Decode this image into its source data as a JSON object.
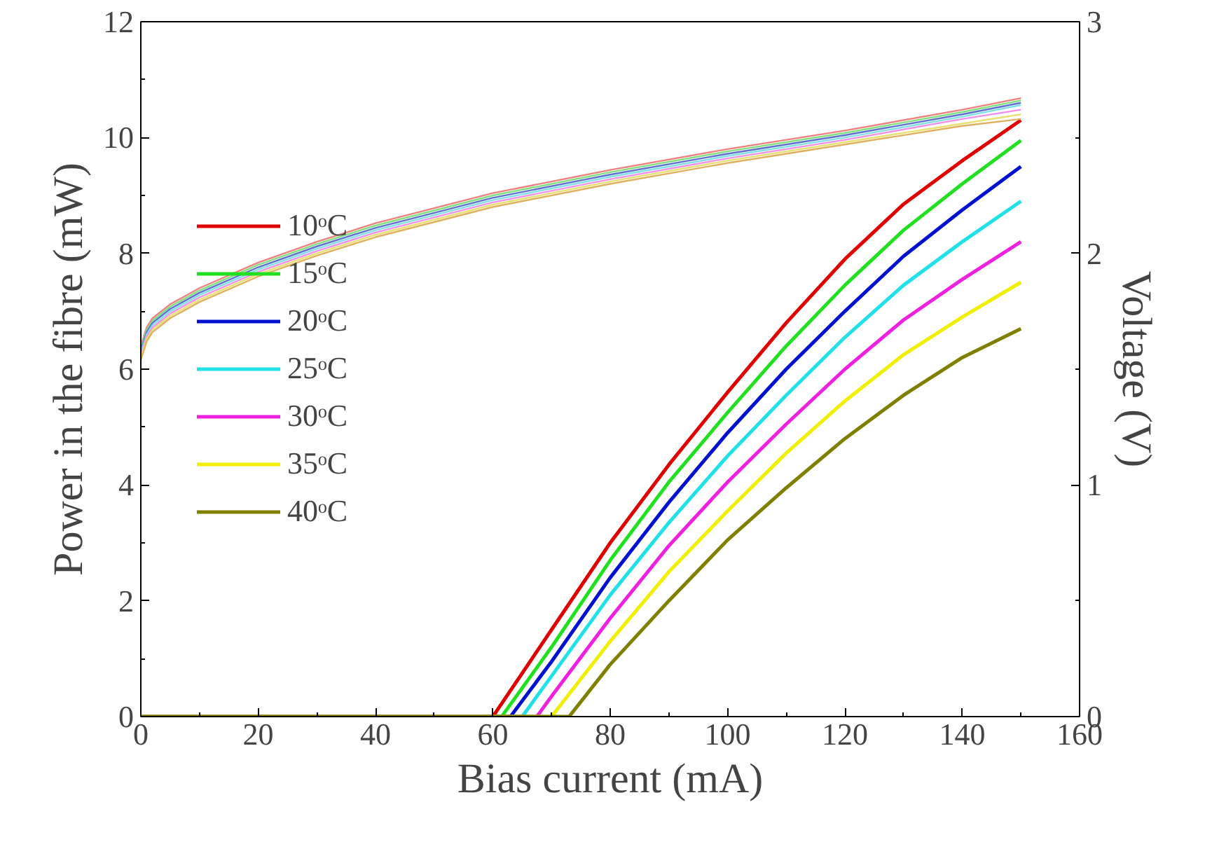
{
  "chart_data": {
    "type": "line",
    "xlabel": "Bias current (mA)",
    "ylabel": "Power in the fibre (mW)",
    "y2label": "Voltage (V)",
    "xlim": [
      0,
      160
    ],
    "ylim": [
      0,
      12
    ],
    "y2lim": [
      0,
      3
    ],
    "xticks": [
      0,
      {
        "value": 10,
        "label": null
      },
      20,
      {
        "value": 30,
        "label": null
      },
      40,
      {
        "value": 50,
        "label": null
      },
      60,
      {
        "value": 70,
        "label": null
      },
      80,
      {
        "value": 90,
        "label": null
      },
      100,
      {
        "value": 110,
        "label": null
      },
      120,
      {
        "value": 130,
        "label": null
      },
      140,
      {
        "value": 150,
        "label": null
      },
      160
    ],
    "yticks": [
      0,
      {
        "value": 1,
        "label": null
      },
      2,
      {
        "value": 3,
        "label": null
      },
      4,
      {
        "value": 5,
        "label": null
      },
      6,
      {
        "value": 7,
        "label": null
      },
      8,
      {
        "value": 9,
        "label": null
      },
      10,
      {
        "value": 11,
        "label": null
      },
      12
    ],
    "y2ticks": [
      0,
      {
        "value": 0.5,
        "label": null
      },
      1,
      {
        "value": 1.5,
        "label": null
      },
      2,
      {
        "value": 2.5,
        "label": null
      },
      3
    ],
    "grid": false,
    "legend": "left",
    "line_style": "solid",
    "marker": "none",
    "series": [
      {
        "name": "10ᵒC",
        "color": "#e00000",
        "x": [
          0,
          40,
          60,
          70,
          80,
          90,
          100,
          110,
          120,
          130,
          140,
          150
        ],
        "values": [
          0,
          0,
          0,
          1.5,
          3.0,
          4.35,
          5.6,
          6.8,
          7.9,
          8.85,
          9.6,
          10.3
        ]
      },
      {
        "name": "15ᵒC",
        "color": "#20e020",
        "x": [
          0,
          40,
          61.5,
          70,
          80,
          90,
          100,
          110,
          120,
          130,
          140,
          150
        ],
        "values": [
          0,
          0,
          0,
          1.2,
          2.7,
          4.05,
          5.25,
          6.4,
          7.45,
          8.4,
          9.2,
          9.95
        ]
      },
      {
        "name": "20ᵒC",
        "color": "#0010d0",
        "x": [
          0,
          40,
          63,
          70,
          80,
          90,
          100,
          110,
          120,
          130,
          140,
          150
        ],
        "values": [
          0,
          0,
          0,
          0.95,
          2.4,
          3.7,
          4.9,
          6.0,
          7.0,
          7.95,
          8.75,
          9.5
        ]
      },
      {
        "name": "25ᵒC",
        "color": "#20e0e8",
        "x": [
          0,
          40,
          65,
          70,
          80,
          90,
          100,
          110,
          120,
          130,
          140,
          150
        ],
        "values": [
          0,
          0,
          0,
          0.7,
          2.1,
          3.35,
          4.5,
          5.55,
          6.55,
          7.45,
          8.2,
          8.9
        ]
      },
      {
        "name": "30ᵒC",
        "color": "#f020e0",
        "x": [
          0,
          40,
          67.5,
          70,
          80,
          90,
          100,
          110,
          120,
          130,
          140,
          150
        ],
        "values": [
          0,
          0,
          0,
          0.35,
          1.7,
          2.95,
          4.05,
          5.05,
          6.0,
          6.85,
          7.55,
          8.2
        ]
      },
      {
        "name": "35ᵒC",
        "color": "#f0f000",
        "x": [
          0,
          40,
          70,
          80,
          90,
          100,
          110,
          120,
          130,
          140,
          150
        ],
        "values": [
          0,
          0,
          0,
          1.3,
          2.5,
          3.55,
          4.55,
          5.45,
          6.25,
          6.9,
          7.5
        ]
      },
      {
        "name": "40ᵒC",
        "color": "#808000",
        "x": [
          0,
          40,
          73,
          80,
          90,
          100,
          110,
          120,
          130,
          140,
          150
        ],
        "values": [
          0,
          0,
          0,
          0.9,
          2.0,
          3.05,
          3.95,
          4.8,
          5.55,
          6.2,
          6.7
        ]
      },
      {
        "color": "#f08080",
        "axis": "y2",
        "x": [
          0,
          1,
          2,
          5,
          10,
          20,
          30,
          40,
          60,
          80,
          100,
          120,
          140,
          150
        ],
        "values": [
          1.6,
          1.68,
          1.72,
          1.78,
          1.85,
          1.96,
          2.05,
          2.13,
          2.26,
          2.36,
          2.45,
          2.53,
          2.62,
          2.67
        ]
      },
      {
        "color": "#80e080",
        "axis": "y2",
        "x": [
          0,
          1,
          2,
          5,
          10,
          20,
          30,
          40,
          60,
          80,
          100,
          120,
          140,
          150
        ],
        "values": [
          1.59,
          1.67,
          1.71,
          1.77,
          1.84,
          1.95,
          2.04,
          2.12,
          2.25,
          2.35,
          2.44,
          2.52,
          2.61,
          2.66
        ]
      },
      {
        "color": "#6070d0",
        "axis": "y2",
        "x": [
          0,
          1,
          2,
          5,
          10,
          20,
          30,
          40,
          60,
          80,
          100,
          120,
          140,
          150
        ],
        "values": [
          1.58,
          1.66,
          1.7,
          1.76,
          1.83,
          1.94,
          2.03,
          2.11,
          2.24,
          2.34,
          2.43,
          2.51,
          2.6,
          2.65
        ]
      },
      {
        "color": "#80e0e8",
        "axis": "y2",
        "x": [
          0,
          1,
          2,
          5,
          10,
          20,
          30,
          40,
          60,
          80,
          100,
          120,
          140,
          150
        ],
        "values": [
          1.57,
          1.65,
          1.69,
          1.75,
          1.82,
          1.93,
          2.02,
          2.1,
          2.23,
          2.33,
          2.42,
          2.5,
          2.59,
          2.64
        ]
      },
      {
        "color": "#f090e8",
        "axis": "y2",
        "x": [
          0,
          1,
          2,
          5,
          10,
          20,
          30,
          40,
          60,
          80,
          100,
          120,
          140,
          150
        ],
        "values": [
          1.56,
          1.64,
          1.68,
          1.74,
          1.81,
          1.92,
          2.01,
          2.09,
          2.22,
          2.32,
          2.41,
          2.49,
          2.58,
          2.62
        ]
      },
      {
        "color": "#e8e070",
        "axis": "y2",
        "x": [
          0,
          1,
          2,
          5,
          10,
          20,
          30,
          40,
          60,
          80,
          100,
          120,
          140,
          150
        ],
        "values": [
          1.55,
          1.63,
          1.67,
          1.73,
          1.8,
          1.91,
          2.0,
          2.08,
          2.21,
          2.31,
          2.4,
          2.48,
          2.56,
          2.6
        ]
      },
      {
        "color": "#e0b060",
        "axis": "y2",
        "x": [
          0,
          1,
          2,
          5,
          10,
          20,
          30,
          40,
          60,
          80,
          100,
          120,
          140,
          150
        ],
        "values": [
          1.54,
          1.62,
          1.66,
          1.72,
          1.79,
          1.9,
          1.99,
          2.07,
          2.2,
          2.3,
          2.39,
          2.47,
          2.55,
          2.58
        ]
      }
    ]
  }
}
